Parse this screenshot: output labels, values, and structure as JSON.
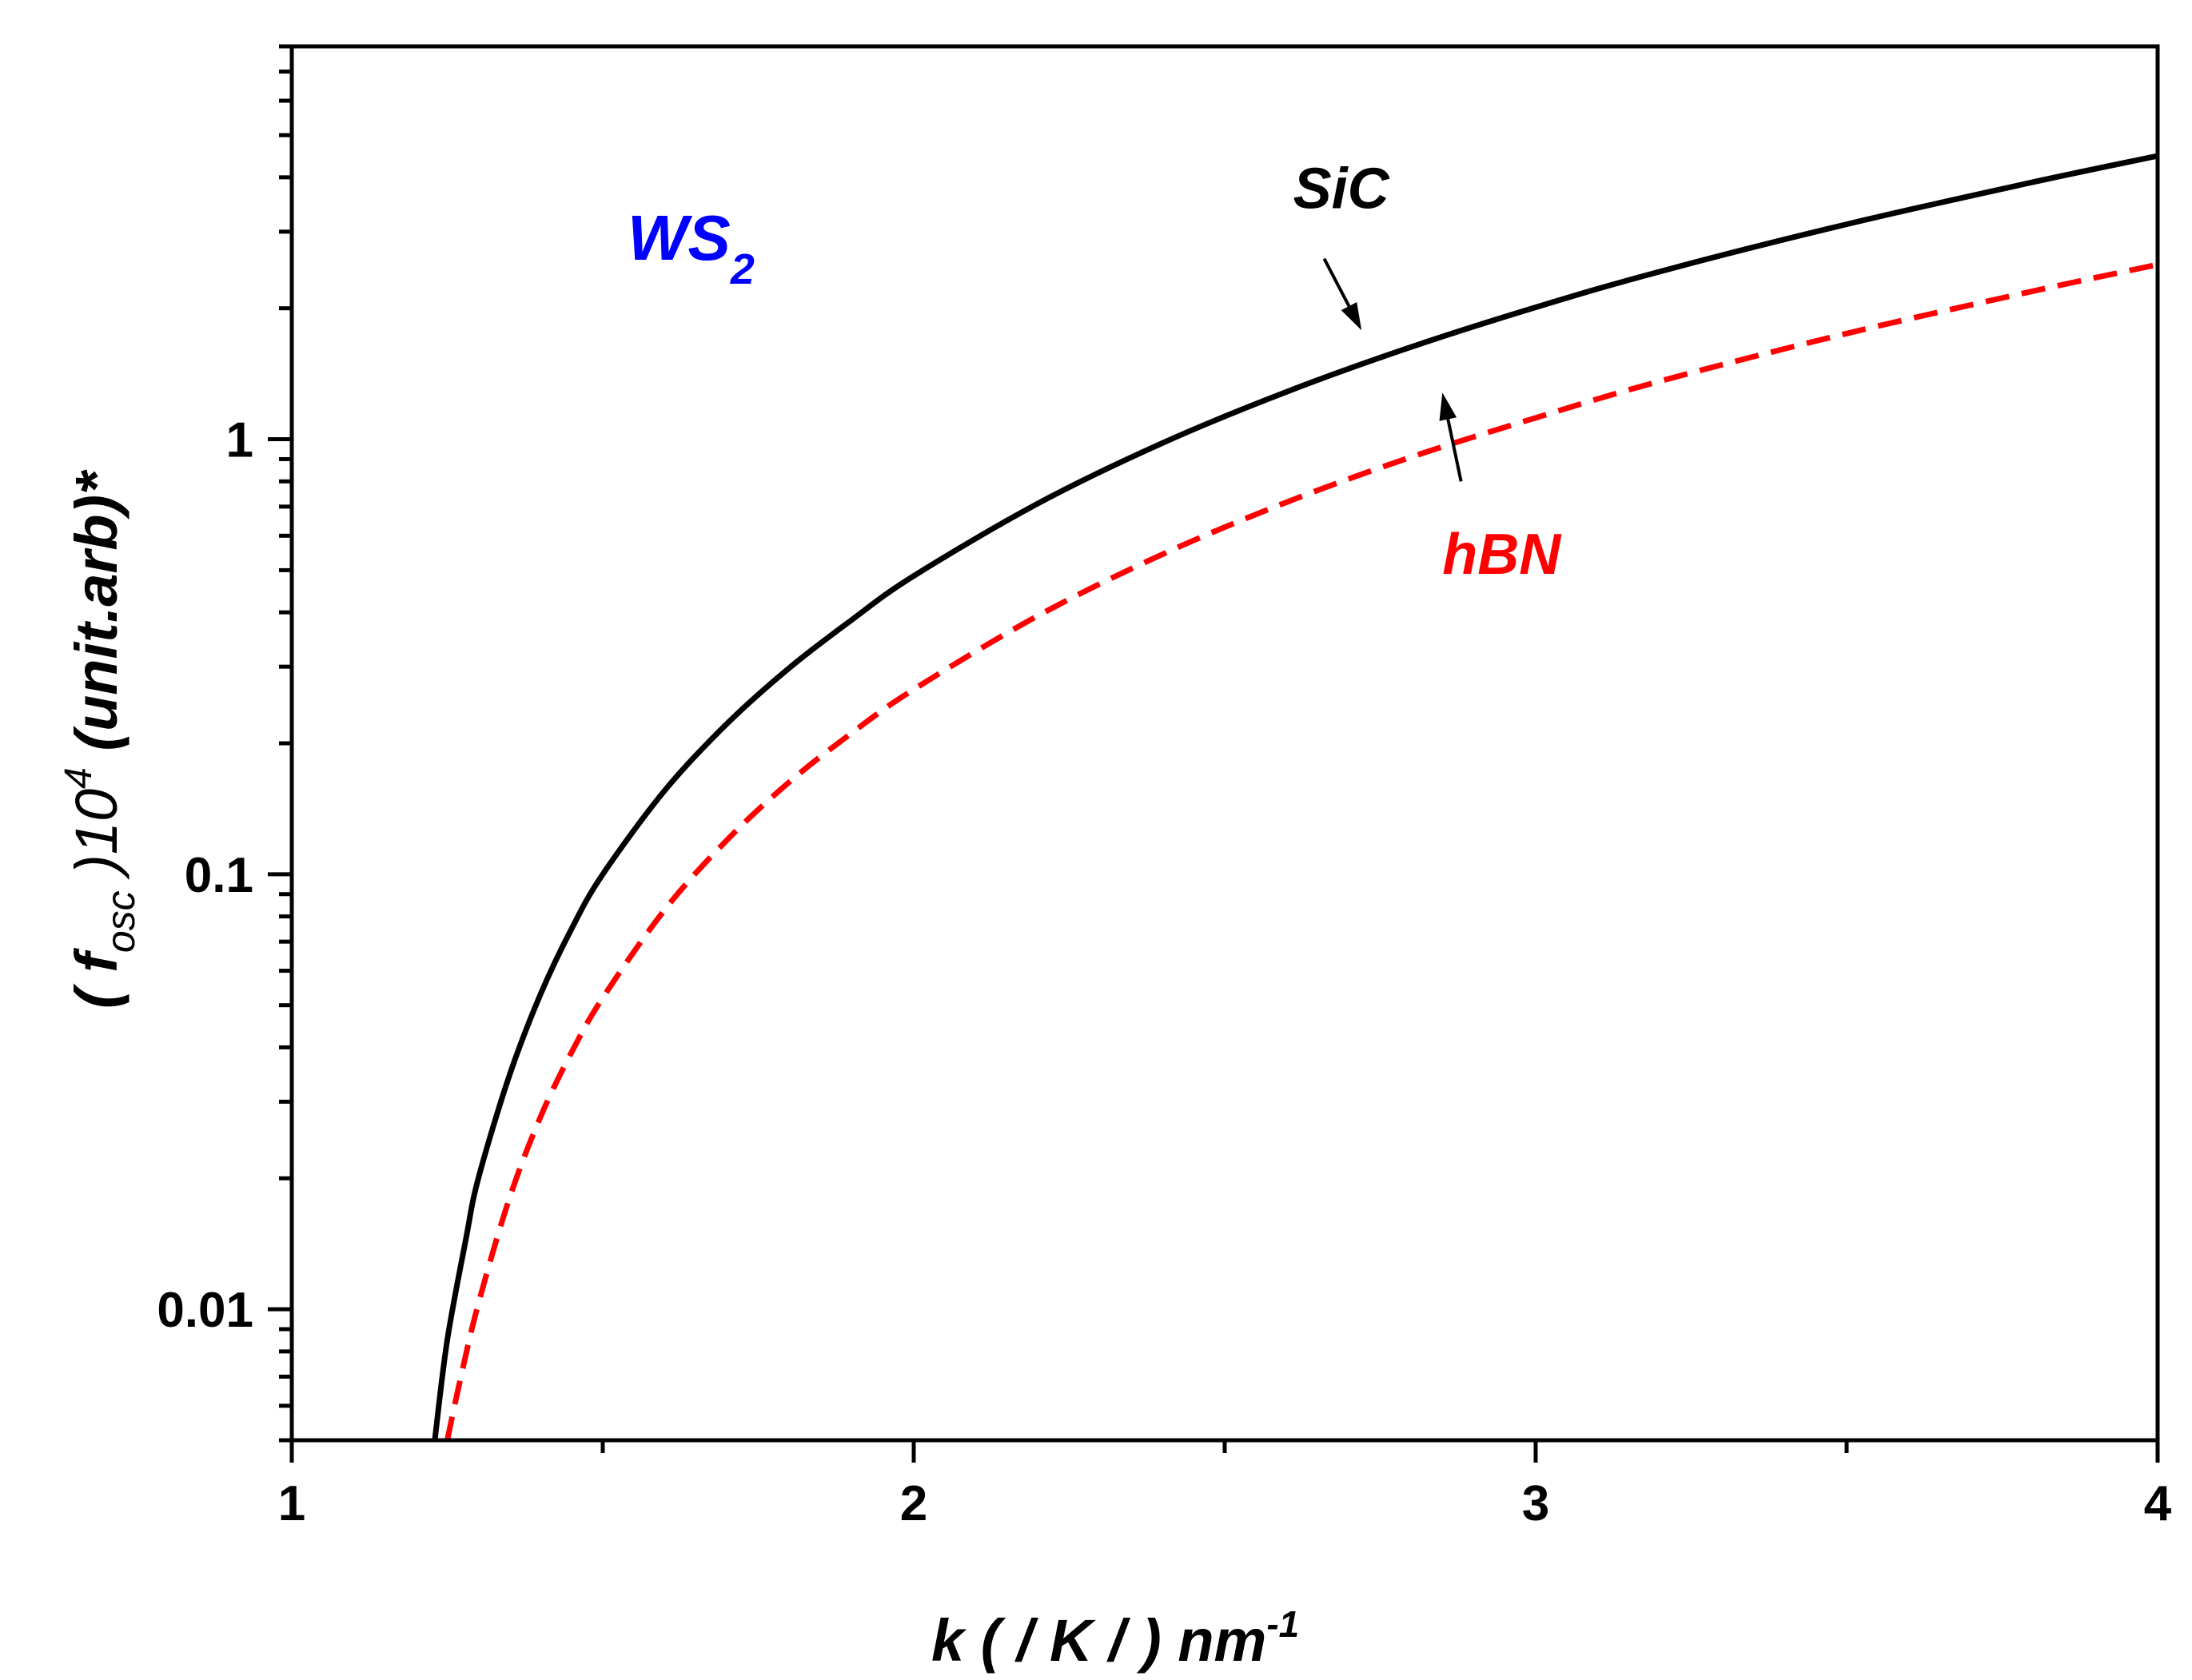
{
  "chart_data": {
    "type": "line",
    "title": "",
    "xlabel": {
      "prefix": "k ( / K / ) nm",
      "sup": "-1"
    },
    "ylabel": {
      "open": "( ",
      "f": "f",
      "sub": "osc",
      "mid": " )10",
      "sup": "4",
      "tail": "  (unit.arb)*"
    },
    "xscale": "linear",
    "yscale": "log",
    "xlim": [
      1,
      4
    ],
    "ylim": [
      0.005,
      8
    ],
    "x_ticks": [
      1,
      2,
      3,
      4
    ],
    "x_tick_labels": [
      "1",
      "2",
      "3",
      "4"
    ],
    "y_ticks": [
      0.01,
      0.1,
      1
    ],
    "y_tick_labels": [
      "0.01",
      "0.1",
      "1"
    ],
    "material_label": {
      "main": "WS",
      "sub": "2",
      "color": "#0000ff"
    },
    "series": [
      {
        "name": "SiC",
        "color": "#000000",
        "style": "solid",
        "x": [
          1.23,
          1.25,
          1.28,
          1.3,
          1.35,
          1.4,
          1.45,
          1.5,
          1.6,
          1.7,
          1.8,
          1.9,
          2.0,
          2.2,
          2.4,
          2.6,
          2.8,
          3.0,
          3.2,
          3.5,
          3.8,
          4.0
        ],
        "values": [
          0.005,
          0.0085,
          0.0145,
          0.02,
          0.0345,
          0.053,
          0.075,
          0.1,
          0.156,
          0.222,
          0.298,
          0.384,
          0.485,
          0.712,
          0.98,
          1.286,
          1.63,
          2.01,
          2.43,
          3.12,
          3.9,
          4.48
        ]
      },
      {
        "name": "hBN",
        "color": "#ff0000",
        "style": "dashed",
        "x": [
          1.25,
          1.27,
          1.3,
          1.35,
          1.4,
          1.45,
          1.5,
          1.6,
          1.7,
          1.8,
          1.9,
          2.0,
          2.2,
          2.4,
          2.6,
          2.8,
          3.0,
          3.2,
          3.5,
          3.8,
          4.0
        ],
        "values": [
          0.005,
          0.0068,
          0.0103,
          0.018,
          0.0277,
          0.039,
          0.052,
          0.083,
          0.12,
          0.163,
          0.211,
          0.266,
          0.393,
          0.544,
          0.717,
          0.91,
          1.12,
          1.36,
          1.75,
          2.19,
          2.52
        ]
      }
    ],
    "annotations": [
      {
        "text": "SiC",
        "color": "#000000",
        "label_at": [
          2.61,
          3.4
        ],
        "arrow_from": [
          2.66,
          2.6
        ],
        "arrow_to": [
          2.72,
          1.78
        ]
      },
      {
        "text": "hBN",
        "color": "#ff0000",
        "label_at": [
          2.85,
          0.49
        ],
        "arrow_from": [
          2.88,
          0.8
        ],
        "arrow_to": [
          2.85,
          1.28
        ]
      }
    ]
  }
}
